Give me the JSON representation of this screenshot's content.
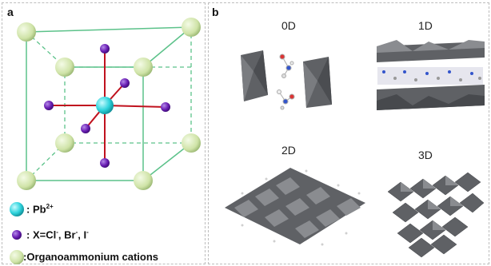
{
  "panel_a": {
    "letter": "a",
    "legend": {
      "pb": {
        "prefix": ": Pb",
        "sup": "2+"
      },
      "halide": {
        "prefix": ": X=Cl",
        "sup1": "-",
        "mid1": ", Br",
        "sup2": "-",
        "mid2": ", I",
        "sup3": "-"
      },
      "cation": {
        "text": ":Organoammonium cations"
      }
    },
    "colors": {
      "pb": "#2fd3dc",
      "halide": "#6a1fb4",
      "cation": "#cfe3a7",
      "bond": "#c0121e",
      "cube_edge": "#5cc28a"
    }
  },
  "panel_b": {
    "letter": "b",
    "labels": {
      "d0": "0D",
      "d1": "1D",
      "d2": "2D",
      "d3": "3D"
    },
    "colors": {
      "octahedron": "#5f6165",
      "octahedron_light": "#8a8c90",
      "octahedron_dark": "#3f4145"
    }
  }
}
